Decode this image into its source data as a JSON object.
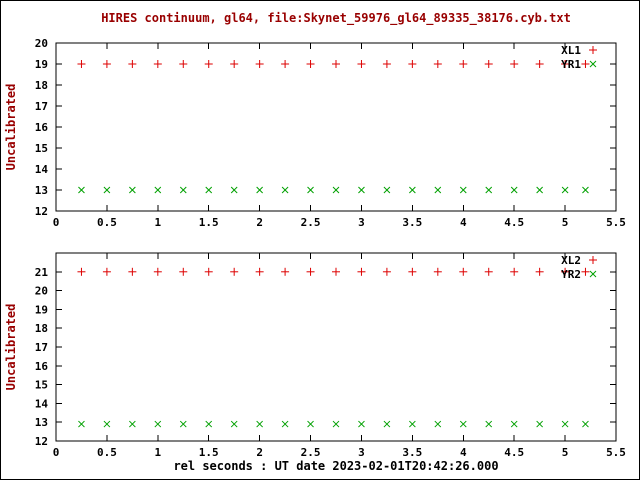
{
  "chart": {
    "title": "HIRES continuum, gl64, file:Skynet_59976_gl64_89335_38176.cyb.txt",
    "xlabel": "rel seconds : UT date 2023-02-01T20:42:26.000",
    "colors": {
      "title_text": "#990000",
      "axis_label_text": "#990000",
      "tick_text": "#000000",
      "frame": "#000000",
      "series_red": "#dd0000",
      "series_green": "#00a000"
    }
  },
  "chart_data": [
    {
      "type": "scatter",
      "panel": "top",
      "title": "",
      "ylabel": "Uncalibrated",
      "xlabel": "",
      "xlim": [
        0,
        5.5
      ],
      "ylim": [
        12,
        20
      ],
      "xticks": [
        0,
        0.5,
        1,
        1.5,
        2,
        2.5,
        3,
        3.5,
        4,
        4.5,
        5,
        5.5
      ],
      "xtick_labels": [
        "0",
        "0.5",
        "1",
        "1.5",
        "2",
        "2.5",
        "3",
        "3.5",
        "4",
        "4.5",
        "5",
        "5.5"
      ],
      "yticks": [
        12,
        13,
        14,
        15,
        16,
        17,
        18,
        19,
        20
      ],
      "grid": false,
      "legend_position": "top-right-inside",
      "x": [
        0.25,
        0.5,
        0.75,
        1,
        1.25,
        1.5,
        1.75,
        2,
        2.25,
        2.5,
        2.75,
        3,
        3.25,
        3.5,
        3.75,
        4,
        4.25,
        4.5,
        4.75,
        5,
        5.2
      ],
      "series": [
        {
          "name": "XL1",
          "marker": "plus",
          "color": "red",
          "values": [
            19,
            19,
            19,
            19,
            19,
            19,
            19,
            19,
            19,
            19,
            19,
            19,
            19,
            19,
            19,
            19,
            19,
            19,
            19,
            19,
            19
          ]
        },
        {
          "name": "YR1",
          "marker": "cross",
          "color": "green",
          "values": [
            13,
            13,
            13,
            13,
            13,
            13,
            13,
            13,
            13,
            13,
            13,
            13,
            13,
            13,
            13,
            13,
            13,
            13,
            13,
            13,
            13
          ]
        }
      ]
    },
    {
      "type": "scatter",
      "panel": "bottom",
      "title": "",
      "ylabel": "Uncalibrated",
      "xlabel": "rel seconds : UT date 2023-02-01T20:42:26.000",
      "xlim": [
        0,
        5.5
      ],
      "ylim": [
        12,
        22
      ],
      "xticks": [
        0,
        0.5,
        1,
        1.5,
        2,
        2.5,
        3,
        3.5,
        4,
        4.5,
        5,
        5.5
      ],
      "xtick_labels": [
        "0",
        "0.5",
        "1",
        "1.5",
        "2",
        "2.5",
        "3",
        "3.5",
        "4",
        "4.5",
        "5",
        "5.5"
      ],
      "yticks": [
        12,
        13,
        14,
        15,
        16,
        17,
        18,
        19,
        20,
        21
      ],
      "grid": false,
      "legend_position": "top-right-inside",
      "x": [
        0.25,
        0.5,
        0.75,
        1,
        1.25,
        1.5,
        1.75,
        2,
        2.25,
        2.5,
        2.75,
        3,
        3.25,
        3.5,
        3.75,
        4,
        4.25,
        4.5,
        4.75,
        5,
        5.2
      ],
      "series": [
        {
          "name": "XL2",
          "marker": "plus",
          "color": "red",
          "values": [
            21,
            21,
            21,
            21,
            21,
            21,
            21,
            21,
            21,
            21,
            21,
            21,
            21,
            21,
            21,
            21,
            21,
            21,
            21,
            21,
            21
          ]
        },
        {
          "name": "YR2",
          "marker": "cross",
          "color": "green",
          "values": [
            12.9,
            12.9,
            12.9,
            12.9,
            12.9,
            12.9,
            12.9,
            12.9,
            12.9,
            12.9,
            12.9,
            12.9,
            12.9,
            12.9,
            12.9,
            12.9,
            12.9,
            12.9,
            12.9,
            12.9,
            12.9
          ]
        }
      ]
    }
  ]
}
